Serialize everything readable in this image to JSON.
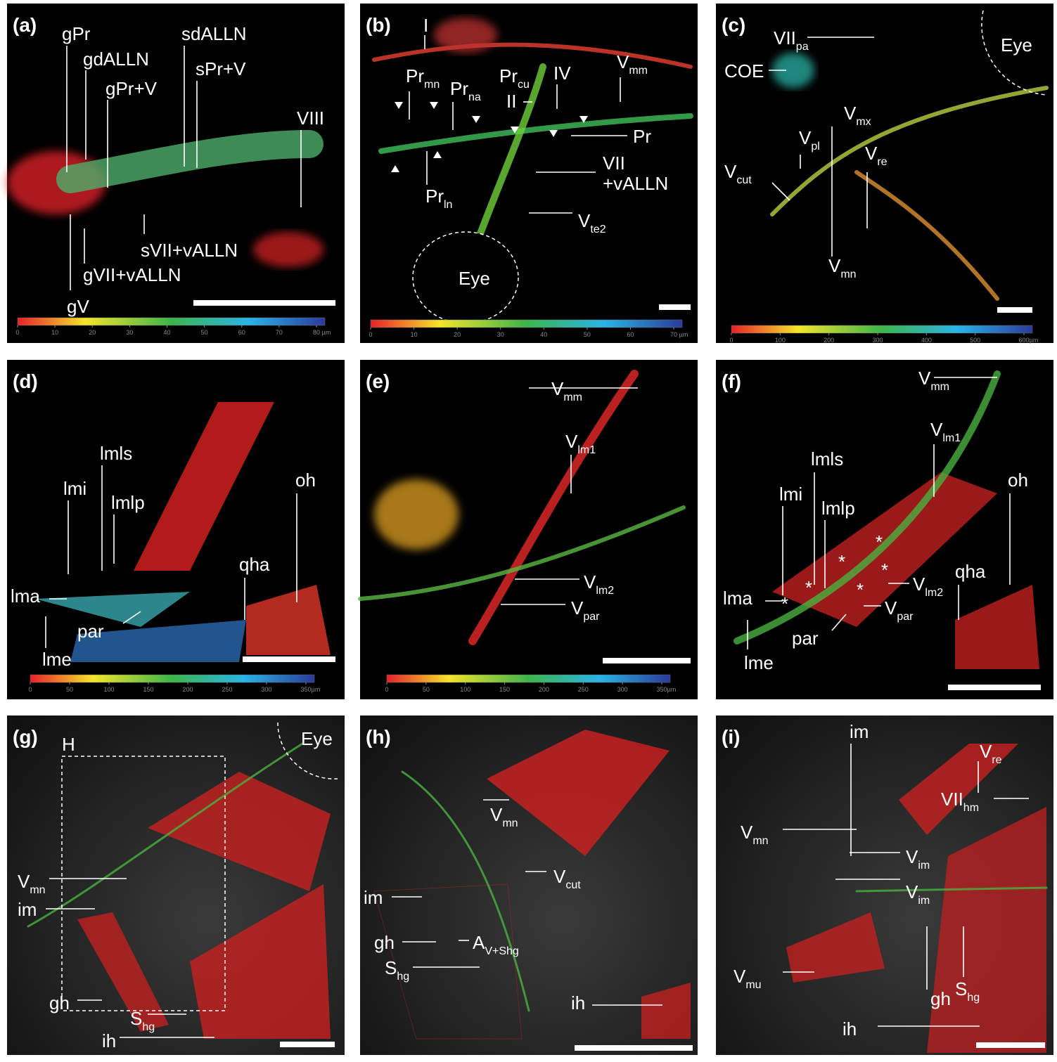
{
  "panels": [
    {
      "letter": "(a)",
      "labels": [
        "gPr",
        "gdALLN",
        "gPr+V",
        "sdALLN",
        "sPr+V",
        "VIII",
        "sVII+vALLN",
        "gVII+vALLN",
        "gV"
      ],
      "colorbar": {
        "ticks": [
          0,
          10,
          20,
          30,
          40,
          50,
          60,
          70,
          80
        ],
        "unit": "µm"
      }
    },
    {
      "letter": "(b)",
      "labels": [
        "I",
        {
          "text": "Pr",
          "sub": "mn"
        },
        {
          "text": "Pr",
          "sub": "na"
        },
        {
          "text": "Pr",
          "sub": "cu"
        },
        "II",
        "IV",
        {
          "text": "V",
          "sub": "mm"
        },
        "Pr",
        "VII",
        "+vALLN",
        {
          "text": "Pr",
          "sub": "ln"
        },
        {
          "text": "V",
          "sub": "te2"
        },
        "Eye"
      ],
      "colorbar": {
        "ticks": [
          0,
          10,
          20,
          30,
          40,
          50,
          60,
          70
        ],
        "unit": "µm"
      }
    },
    {
      "letter": "(c)",
      "labels": [
        {
          "text": "VII",
          "sub": "pa"
        },
        "Eye",
        "COE",
        {
          "text": "V",
          "sub": "mx"
        },
        {
          "text": "V",
          "sub": "pl"
        },
        {
          "text": "V",
          "sub": "re"
        },
        {
          "text": "V",
          "sub": "cut"
        },
        {
          "text": "V",
          "sub": "mn"
        }
      ],
      "colorbar": {
        "ticks": [
          0,
          100,
          200,
          300,
          400,
          500,
          600
        ],
        "unit": "µm"
      }
    },
    {
      "letter": "(d)",
      "labels": [
        "lmls",
        "lmi",
        "lmlp",
        "oh",
        "qha",
        "lma",
        "par",
        "lme"
      ],
      "colorbar": {
        "ticks": [
          0,
          50,
          100,
          150,
          200,
          250,
          300,
          350
        ],
        "unit": "µm"
      }
    },
    {
      "letter": "(e)",
      "labels": [
        {
          "text": "V",
          "sub": "mm"
        },
        {
          "text": "V",
          "sub": "lm1"
        },
        {
          "text": "V",
          "sub": "lm2"
        },
        {
          "text": "V",
          "sub": "par"
        }
      ],
      "colorbar": {
        "ticks": [
          0,
          50,
          100,
          150,
          200,
          250,
          300,
          350
        ],
        "unit": "µm"
      }
    },
    {
      "letter": "(f)",
      "labels": [
        {
          "text": "V",
          "sub": "mm"
        },
        {
          "text": "V",
          "sub": "lm1"
        },
        "lmls",
        "lmi",
        "lmlp",
        "oh",
        "qha",
        {
          "text": "V",
          "sub": "lm2"
        },
        "lma",
        {
          "text": "V",
          "sub": "par"
        },
        "par",
        "lme"
      ],
      "asterisks": [
        "*",
        "*",
        "*",
        "*",
        "*",
        "*"
      ]
    },
    {
      "letter": "(g)",
      "labels": [
        "Eye",
        "H",
        {
          "text": "V",
          "sub": "mn"
        },
        "im",
        "gh",
        {
          "text": "S",
          "sub": "hg"
        },
        "ih"
      ]
    },
    {
      "letter": "(h)",
      "labels": [
        {
          "text": "V",
          "sub": "mn"
        },
        {
          "text": "V",
          "sub": "cut"
        },
        "im",
        "gh",
        {
          "text": "A",
          "sub": "V+Shg"
        },
        {
          "text": "S",
          "sub": "hg"
        },
        "ih"
      ]
    },
    {
      "letter": "(i)",
      "labels": [
        "im",
        {
          "text": "V",
          "sub": "re"
        },
        {
          "text": "VII",
          "sub": "hm"
        },
        {
          "text": "V",
          "sub": "mn"
        },
        {
          "text": "V",
          "sub": "im"
        },
        {
          "text": "V",
          "sub": "im"
        },
        {
          "text": "V",
          "sub": "mu"
        },
        "gh",
        {
          "text": "S",
          "sub": "hg"
        },
        "ih"
      ]
    }
  ]
}
